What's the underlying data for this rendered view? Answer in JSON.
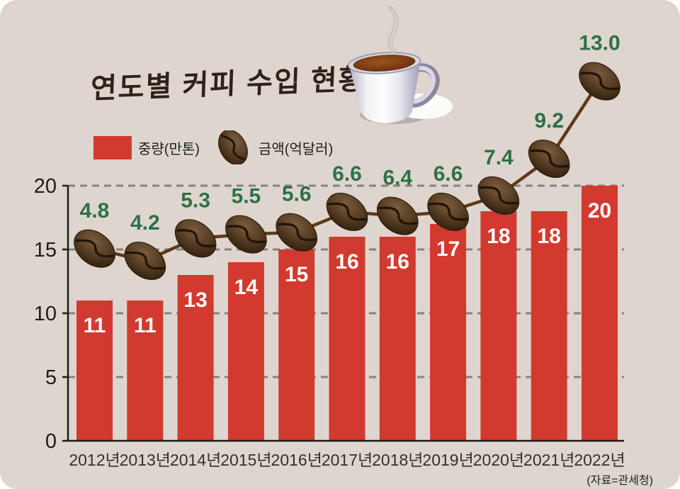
{
  "title": "연도별 커피 수입 현황",
  "source": "(자료=관세청)",
  "legend": {
    "bar_label": "중량(만톤)",
    "line_label": "금액(억달러)"
  },
  "colors": {
    "background": "#ded6ce",
    "bar": "#d23a2f",
    "bar_label": "#ffffff",
    "line": "#5d3a1a",
    "bean_light": "#7a5c3e",
    "bean_mid": "#5a4126",
    "bean_dark": "#2c1c0c",
    "bean_crease": "#221306",
    "value_green": "#2e7046",
    "axis": "#1b1b1b",
    "grid": "#87827c",
    "xlabel": "#35302b",
    "title": "#31201b"
  },
  "chart_data": {
    "type": "bar",
    "title": "연도별 커피 수입 현황",
    "categories": [
      "2012년",
      "2013년",
      "2014년",
      "2015년",
      "2016년",
      "2017년",
      "2018년",
      "2019년",
      "2020년",
      "2021년",
      "2022년"
    ],
    "series": [
      {
        "name": "중량(만톤)",
        "type": "bar",
        "values": [
          11,
          11,
          13,
          14,
          15,
          16,
          16,
          17,
          18,
          18,
          20
        ]
      },
      {
        "name": "금액(억달러)",
        "type": "line",
        "marker": "coffee-bean",
        "values": [
          4.8,
          4.2,
          5.3,
          5.5,
          5.6,
          6.6,
          6.4,
          6.6,
          7.4,
          9.2,
          13.0
        ]
      }
    ],
    "xlabel": "",
    "ylabel": "",
    "yaxis": {
      "ticks": [
        0,
        5,
        10,
        15,
        20
      ],
      "range": [
        0,
        20
      ]
    },
    "grid": "horizontal-dashed",
    "legend_position": "top-left"
  }
}
